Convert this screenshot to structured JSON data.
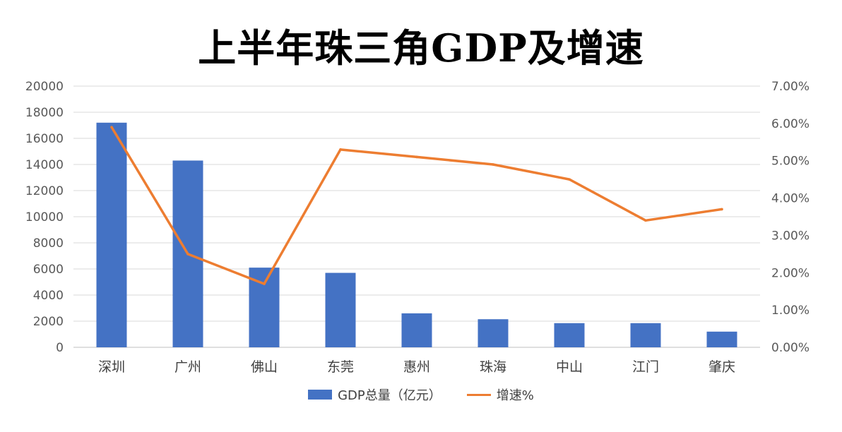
{
  "chart_data": {
    "type": "bar",
    "title": "上半年珠三角GDP及增速",
    "categories": [
      "深圳",
      "广州",
      "佛山",
      "东莞",
      "惠州",
      "珠海",
      "中山",
      "江门",
      "肇庆"
    ],
    "series": [
      {
        "name": "GDP总量（亿元）",
        "type": "bar",
        "axis": "left",
        "color": "#4472C4",
        "values": [
          17200,
          14300,
          6100,
          5700,
          2600,
          2150,
          1850,
          1850,
          1200
        ]
      },
      {
        "name": "增速%",
        "type": "line",
        "axis": "right",
        "color": "#ED7D31",
        "values": [
          5.9,
          2.5,
          1.7,
          5.3,
          5.1,
          4.9,
          4.5,
          3.4,
          3.7
        ]
      }
    ],
    "y_left": {
      "min": 0,
      "max": 20000,
      "step": 2000,
      "ticks": [
        "0",
        "2000",
        "4000",
        "6000",
        "8000",
        "10000",
        "12000",
        "14000",
        "16000",
        "18000",
        "20000"
      ]
    },
    "y_right": {
      "min": 0,
      "max": 7,
      "step": 1,
      "ticks": [
        "0.00%",
        "1.00%",
        "2.00%",
        "3.00%",
        "4.00%",
        "5.00%",
        "6.00%",
        "7.00%"
      ]
    },
    "grid": true,
    "legend_position": "bottom"
  }
}
